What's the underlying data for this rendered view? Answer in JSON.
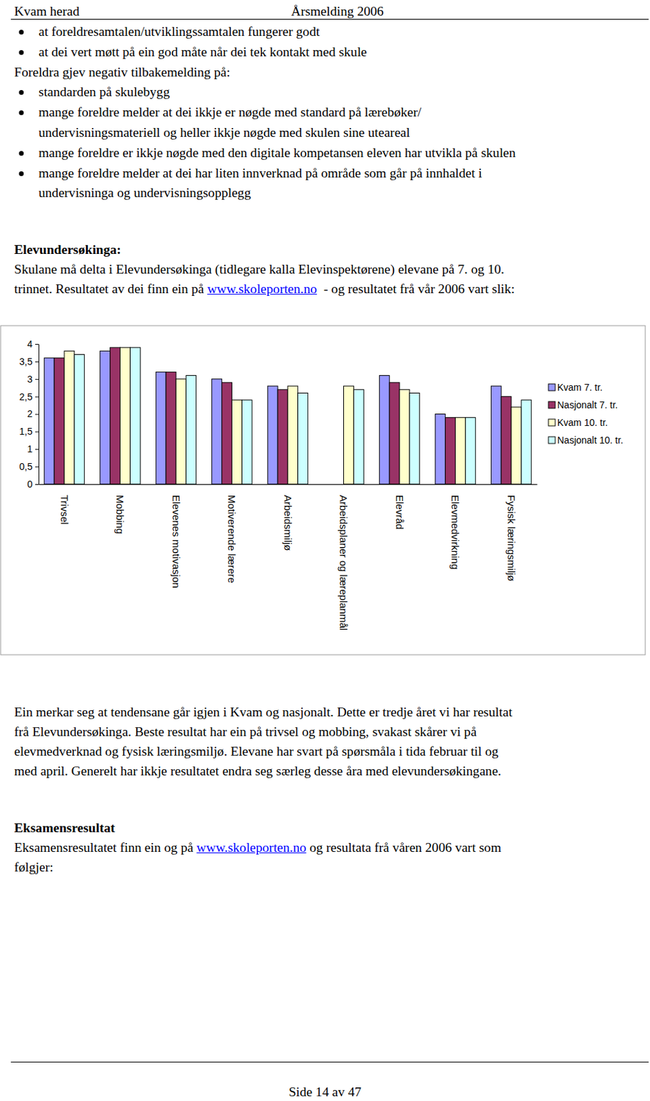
{
  "header": {
    "left": "Kvam herad",
    "right": "Årsmelding 2006"
  },
  "positive_items": [
    [
      "at foreldresamtalen/utviklingssamtalen fungerer godt"
    ],
    [
      "at dei vert møtt på ein god måte når dei tek kontakt med skule"
    ]
  ],
  "negative_intro": "Foreldra gjev negativ tilbakemelding på:",
  "negative_items": [
    [
      "standarden på skulebygg"
    ],
    [
      "mange foreldre melder at dei ikkje er nøgde med standard på lærebøker/",
      "undervisningsmateriell og heller ikkje nøgde med skulen sine uteareal"
    ],
    [
      "mange foreldre er ikkje nøgde med den digitale kompetansen eleven har utvikla på skulen"
    ],
    [
      "mange foreldre melder at dei har liten innverknad på område som går på innhaldet i",
      "undervisninga og undervisningsopplegg"
    ]
  ],
  "survey": {
    "heading": "Elevundersøkinga:",
    "line_1": "Skulane må delta i Elevundersøkinga (tidlegare kalla Elevinspektørene) elevane på 7. og 10.",
    "line_2": {
      "before": "trinnet. Resultatet av dei finn ein på ",
      "link": "www.skoleporten.no",
      "after": "  - og resultatet frå vår 2006 vart slik:"
    }
  },
  "chart_data": {
    "type": "bar",
    "categories": [
      "Trivsel",
      "Mobbing",
      "Elevenes motivasjon",
      "Motiverende lærere",
      "Arbeidsmiljø",
      "Arbeidsplaner og læreplanmål",
      "Elevråd",
      "Elevmedvirkning",
      "Fysisk læringsmiljø"
    ],
    "series": [
      {
        "name": "Kvam 7. tr.",
        "color": "#9999ff",
        "values": [
          3.6,
          3.8,
          3.2,
          3.0,
          2.8,
          null,
          3.1,
          2.0,
          2.8
        ]
      },
      {
        "name": "Nasjonalt 7. tr.",
        "color": "#993366",
        "values": [
          3.6,
          3.9,
          3.2,
          2.9,
          2.7,
          null,
          2.9,
          1.9,
          2.5
        ]
      },
      {
        "name": "Kvam 10. tr.",
        "color": "#ffffcc",
        "values": [
          3.8,
          3.9,
          3.0,
          2.4,
          2.8,
          2.8,
          2.7,
          1.9,
          2.2
        ]
      },
      {
        "name": "Nasjonalt 10. tr.",
        "color": "#ccffff",
        "values": [
          3.7,
          3.9,
          3.1,
          2.4,
          2.6,
          2.7,
          2.6,
          1.9,
          2.4
        ]
      }
    ],
    "ylim": [
      0,
      4
    ],
    "yticks": [
      0,
      {
        "value": 0.5,
        "label": "0,5"
      },
      1,
      {
        "value": 1.5,
        "label": "1,5"
      },
      2,
      {
        "value": 2.5,
        "label": "2,5"
      },
      3,
      {
        "value": 3.5,
        "label": "3,5"
      },
      4
    ],
    "grid": false,
    "legend": "right"
  },
  "conclusion_lines": [
    "Ein merkar seg at tendensane går igjen i Kvam og nasjonalt. Dette er tredje året vi har resultat",
    "frå Elevundersøkinga. Beste resultat har ein på trivsel og mobbing, svakast skårer vi på",
    "elevmedverknad og fysisk læringsmiljø. Elevane har svart på spørsmåla i tida februar til og",
    "med april. Generelt har ikkje resultatet endra seg særleg desse åra med elevundersøkingane."
  ],
  "exam": {
    "heading": "Eksamensresultat",
    "line_1": {
      "before": "Eksamensresultatet finn ein og på ",
      "link": "www.skoleporten.no",
      "after": " og resultata frå våren 2006 vart som"
    },
    "line_2": "følgjer:"
  },
  "footer": "Side 14 av 47"
}
